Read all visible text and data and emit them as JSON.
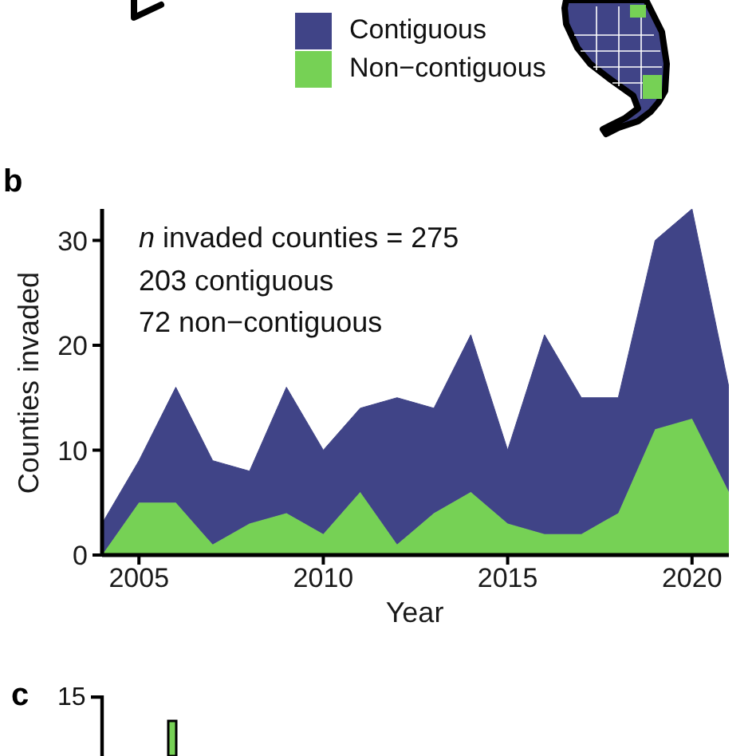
{
  "chart_data": [
    {
      "type": "area",
      "title": "b",
      "xlabel": "Year",
      "ylabel": "Counties invaded",
      "x": [
        2004,
        2005,
        2006,
        2007,
        2008,
        2009,
        2010,
        2011,
        2012,
        2013,
        2014,
        2015,
        2016,
        2017,
        2018,
        2019,
        2020,
        2021
      ],
      "series": [
        {
          "name": "Non−contiguous",
          "color": "#76d155",
          "values": [
            0,
            5,
            5,
            1,
            3,
            4,
            2,
            6,
            1,
            4,
            6,
            3,
            2,
            2,
            4,
            12,
            13,
            6
          ]
        },
        {
          "name": "Contiguous",
          "color": "#404487",
          "values": [
            3,
            4,
            11,
            8,
            5,
            12,
            8,
            8,
            14,
            10,
            15,
            7,
            19,
            13,
            11,
            18,
            20,
            10
          ]
        }
      ],
      "stacked": true,
      "xlim": [
        2004,
        2021
      ],
      "xticks": [
        2005,
        2010,
        2015,
        2020
      ],
      "ylim": [
        0,
        33
      ],
      "yticks": [
        0,
        10,
        20,
        30
      ],
      "legend": "top",
      "annotations": [
        "n invaded counties = 275",
        "203 contiguous",
        "72 non−contiguous"
      ]
    },
    {
      "type": "other",
      "title": "c",
      "annotations": [
        "15"
      ]
    }
  ]
}
